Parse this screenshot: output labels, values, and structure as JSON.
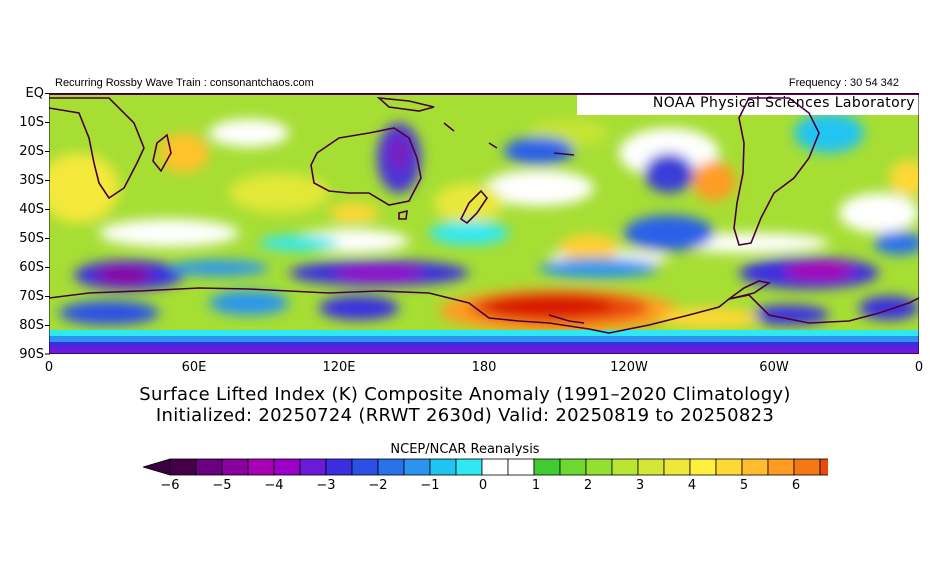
{
  "header": {
    "left_text": "Recurring Rossby Wave Train : consonantchaos.com",
    "right_text": "Frequency : 30 54 342",
    "lab_label": "NOAA Physical Sciences Laboratory"
  },
  "map": {
    "region": "Southern Hemisphere, Equator to 90S, 0 to 360",
    "field": "Surface Lifted Index anomaly",
    "y_labels": [
      "EQ",
      "10S",
      "20S",
      "30S",
      "40S",
      "50S",
      "60S",
      "70S",
      "80S",
      "90S"
    ],
    "x_labels": [
      "0",
      "60E",
      "120E",
      "180",
      "120W",
      "60W",
      "0"
    ]
  },
  "title": {
    "line1": "Surface Lifted Index (K) Composite Anomaly (1991–2020 Climatology)",
    "line2": "Initialized: 20250724 (RRWT 2630d) Valid: 20250819 to 20250823"
  },
  "colorbar": {
    "label": "NCEP/NCAR Reanalysis",
    "tick_labels": [
      "−6",
      "−5",
      "−4",
      "−3",
      "−2",
      "−1",
      "0",
      "1",
      "2",
      "3",
      "4",
      "5",
      "6"
    ],
    "colors": [
      "#46004a",
      "#6a0080",
      "#8a009e",
      "#a800b4",
      "#9a00c8",
      "#6a1ad8",
      "#3a2ee0",
      "#2a50e6",
      "#2a72ea",
      "#2c94ee",
      "#20c4f0",
      "#30e8f2",
      "#ffffff",
      "#ffffff",
      "#40cc30",
      "#6cd830",
      "#94e030",
      "#b8e432",
      "#d6e636",
      "#eee83a",
      "#fff03e",
      "#ffd836",
      "#ffbc2c",
      "#ff9c20",
      "#f47814",
      "#e84a0c",
      "#d81206"
    ],
    "under_color": "#3c0040",
    "over_color": "#c80000"
  }
}
